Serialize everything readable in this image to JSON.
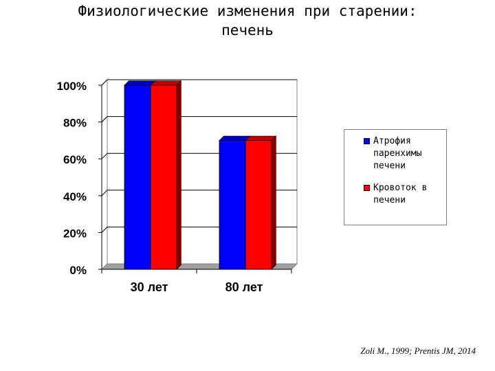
{
  "slide": {
    "title_line1": "Физиологические изменения при старении:",
    "title_line2": "печень",
    "citation": "Zoli M., 1999; Prentis JM, 2014"
  },
  "chart_data": {
    "type": "bar",
    "categories": [
      "30 лет",
      "80 лет"
    ],
    "series": [
      {
        "name": "Атрофия паренхимы печени",
        "color": "#0000ff",
        "values": [
          100,
          70
        ]
      },
      {
        "name": "Кровоток в печени",
        "color": "#ff0000",
        "values": [
          100,
          70
        ]
      }
    ],
    "ylim": [
      0,
      100
    ],
    "yticks": [
      {
        "value": 0,
        "label": "0%"
      },
      {
        "value": 20,
        "label": "20%"
      },
      {
        "value": 40,
        "label": "40%"
      },
      {
        "value": 60,
        "label": "60%"
      },
      {
        "value": 80,
        "label": "80%"
      },
      {
        "value": 100,
        "label": "100%"
      }
    ],
    "grid": true,
    "legend": {
      "placement": "right",
      "items": [
        {
          "label": "Атрофия\nпаренхимы\nпечени",
          "color": "#0000ff"
        },
        {
          "label": "Кровоток в\nпечени",
          "color": "#ff0000"
        }
      ]
    }
  }
}
